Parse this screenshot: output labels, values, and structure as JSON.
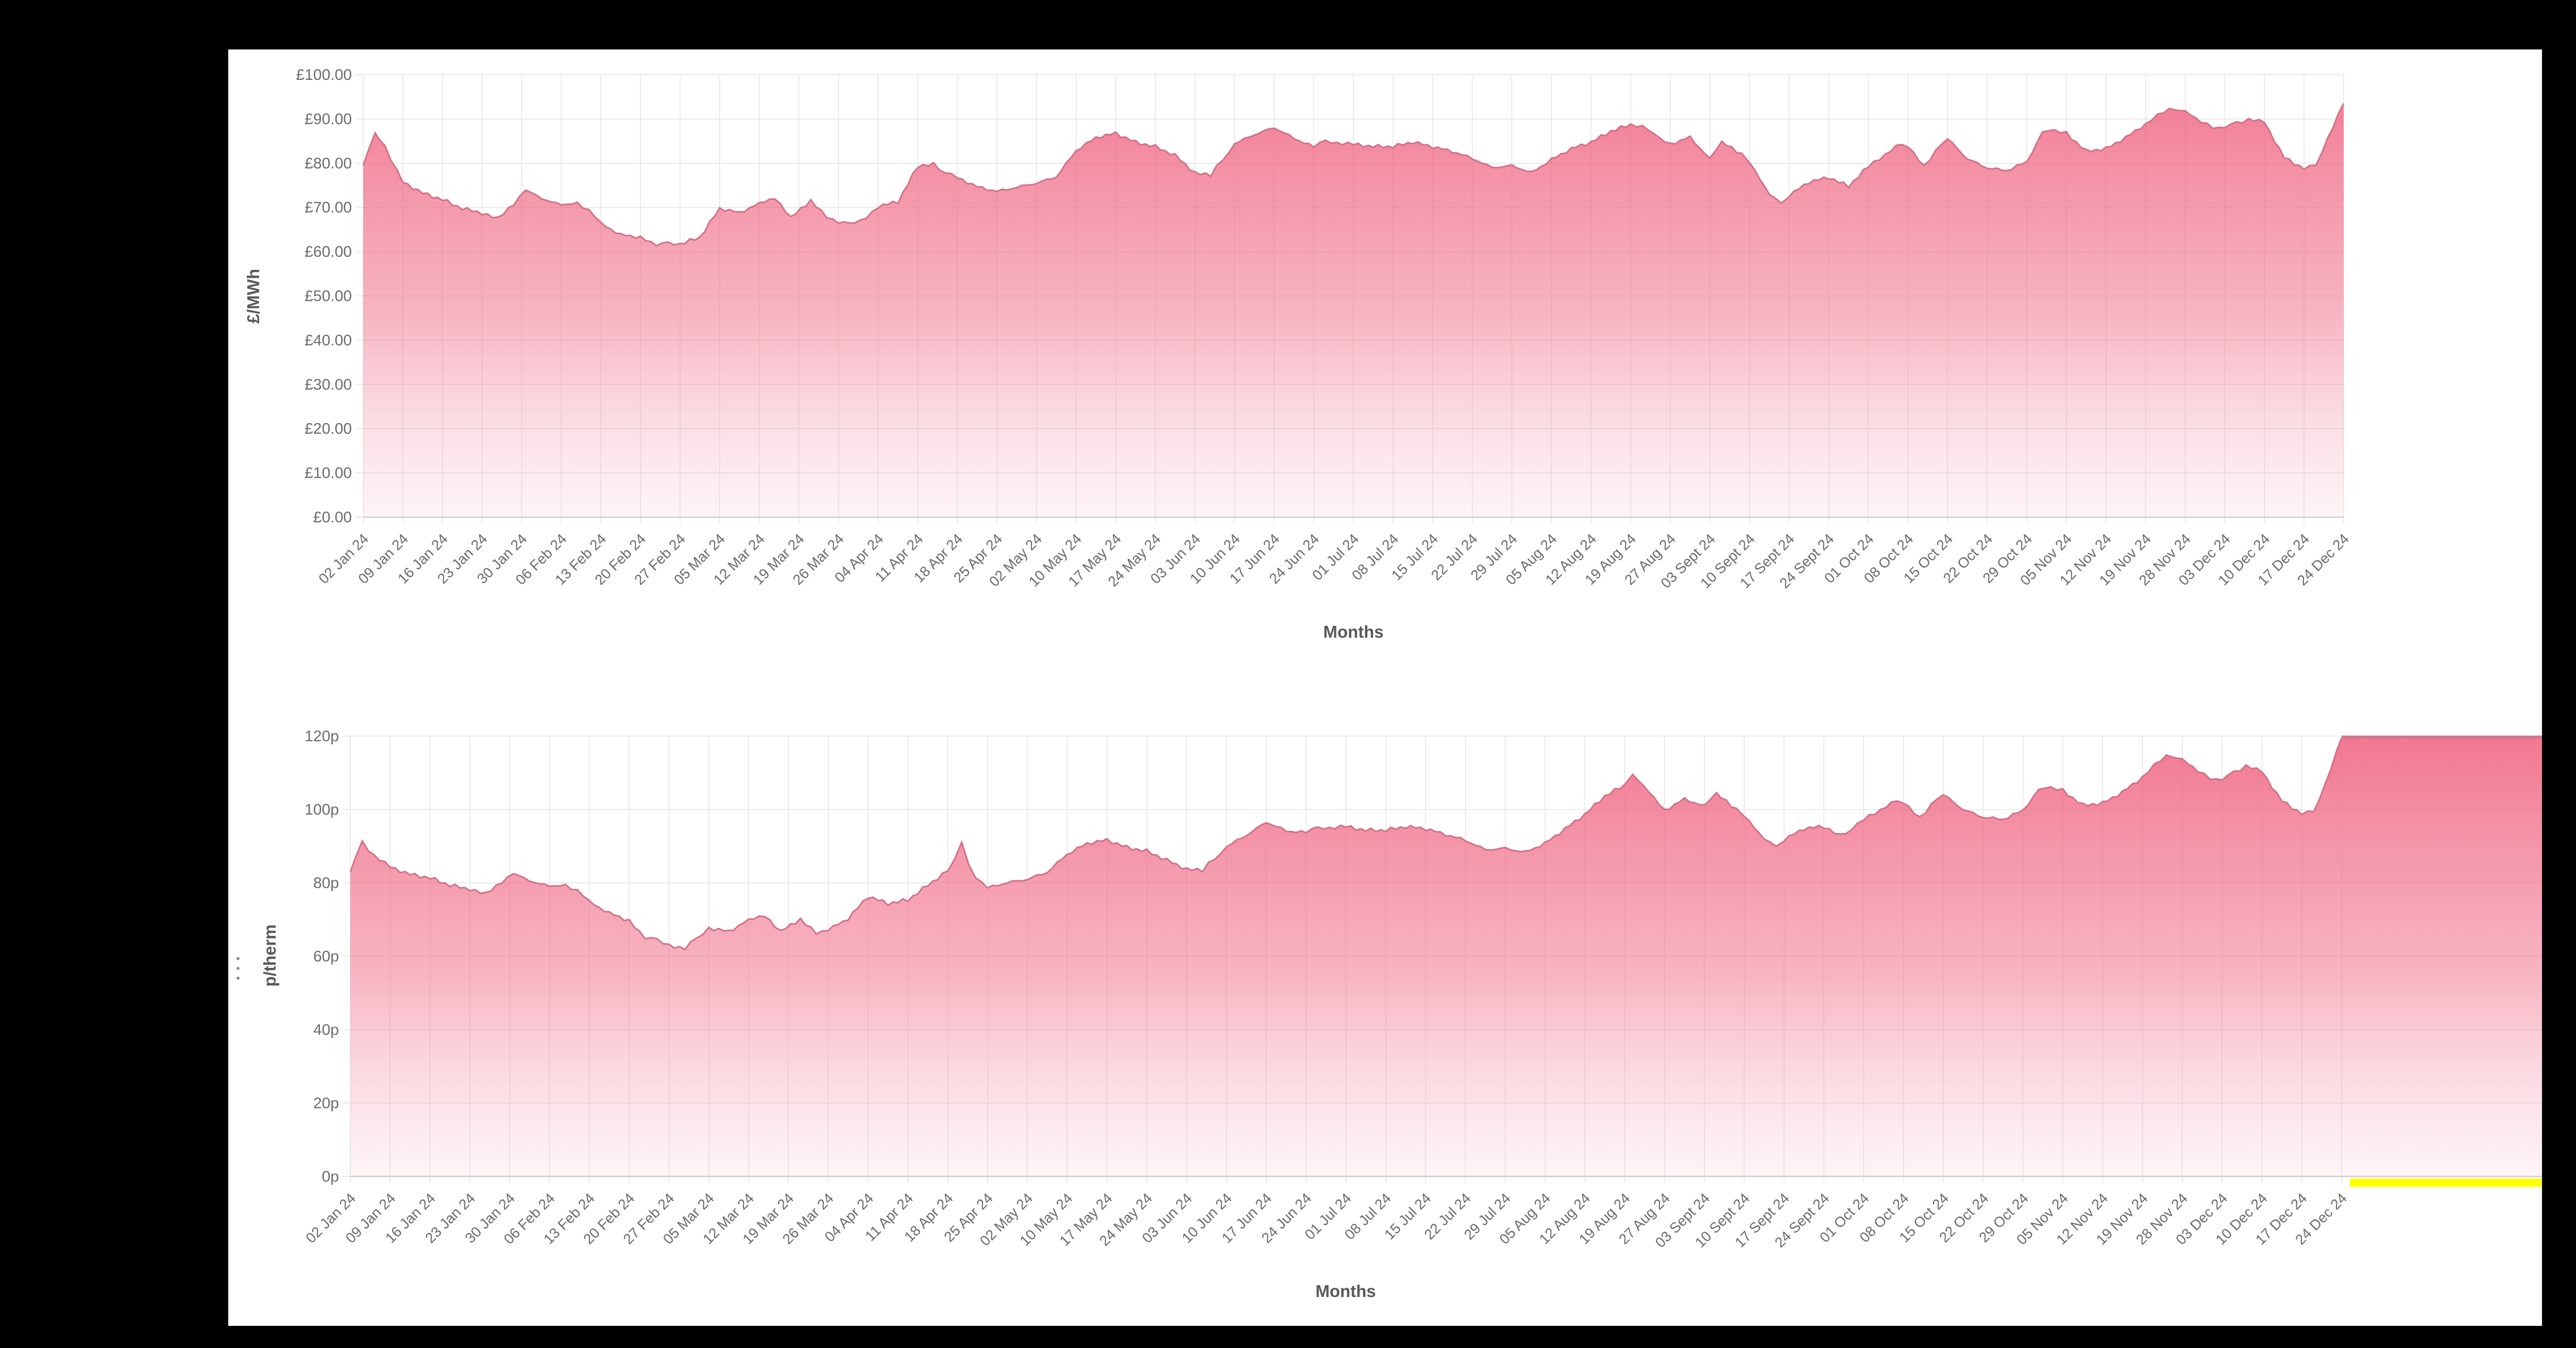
{
  "window": {
    "frame_background": "#000000",
    "surface_background": "#ffffff"
  },
  "icons": {
    "drag_handle": "vertical-dots"
  },
  "chart_data": [
    {
      "type": "area",
      "id": "power",
      "title": "",
      "xlabel": "Months",
      "ylabel": "£/MWh",
      "ylim": [
        0,
        100
      ],
      "y_ticks": [
        "£100.00",
        "£90.00",
        "£80.00",
        "£70.00",
        "£60.00",
        "£50.00",
        "£40.00",
        "£30.00",
        "£20.00",
        "£10.00",
        "£0.00"
      ],
      "x_label_rotation": -45,
      "grid": "on",
      "legend_position": "none",
      "categories": [
        "02 Jan 24",
        "09 Jan 24",
        "16 Jan 24",
        "23 Jan 24",
        "30 Jan 24",
        "06 Feb 24",
        "13 Feb 24",
        "20 Feb 24",
        "27 Feb 24",
        "05 Mar 24",
        "12 Mar 24",
        "19 Mar 24",
        "26 Mar 24",
        "04 Apr 24",
        "11 Apr 24",
        "18 Apr 24",
        "25 Apr 24",
        "02 May 24",
        "10 May 24",
        "17 May 24",
        "24 May 24",
        "03 Jun 24",
        "10 Jun 24",
        "17 Jun 24",
        "24 Jun 24",
        "01 Jul 24",
        "08 Jul 24",
        "15 Jul 24",
        "22 Jul 24",
        "29 Jul 24",
        "05 Aug 24",
        "12 Aug 24",
        "19 Aug 24",
        "27 Aug 24",
        "03 Sept 24",
        "10 Sept 24",
        "17 Sept 24",
        "24 Sept 24",
        "01 Oct 24",
        "08 Oct 24",
        "15 Oct 24",
        "22 Oct 24",
        "29 Oct 24",
        "05 Nov 24",
        "12 Nov 24",
        "19 Nov 24",
        "28 Nov 24",
        "03 Dec 24",
        "10 Dec 24",
        "17 Dec 24",
        "24 Dec 24"
      ],
      "values": [
        79.5,
        75.5,
        71.5,
        68.5,
        72.5,
        70.5,
        66.5,
        63.5,
        62,
        70,
        71,
        69,
        66.5,
        70,
        79,
        76.5,
        73.5,
        75.5,
        83,
        87,
        84,
        78,
        84.5,
        88,
        83.5,
        84,
        83.5,
        83.5,
        81,
        79.5,
        81,
        85,
        89,
        84.5,
        81,
        80,
        72.5,
        76.5,
        79,
        83.5,
        85.5,
        79,
        80.5,
        87,
        83.5,
        89,
        92,
        88,
        89,
        78.5,
        93.5
      ],
      "detail_points": [
        [
          0,
          79.5
        ],
        [
          0.3,
          86.5
        ],
        [
          0.55,
          84
        ],
        [
          1,
          75.5
        ],
        [
          1.5,
          73
        ],
        [
          2,
          71.5
        ],
        [
          2.5,
          69.5
        ],
        [
          3,
          68.5
        ],
        [
          3.4,
          67.5
        ],
        [
          3.8,
          71
        ],
        [
          4.1,
          73.5
        ],
        [
          4.5,
          72
        ],
        [
          5,
          70.5
        ],
        [
          5.4,
          71.5
        ],
        [
          6,
          66.5
        ],
        [
          6.5,
          64
        ],
        [
          7,
          63.5
        ],
        [
          7.4,
          61.5
        ],
        [
          8,
          62
        ],
        [
          8.5,
          63.5
        ],
        [
          9,
          70
        ],
        [
          9.5,
          69
        ],
        [
          10,
          71
        ],
        [
          10.4,
          72
        ],
        [
          10.8,
          67.5
        ],
        [
          11.3,
          71.5
        ],
        [
          11.7,
          68
        ],
        [
          12,
          66.5
        ],
        [
          12.4,
          66
        ],
        [
          13,
          70
        ],
        [
          13.5,
          71
        ],
        [
          14,
          79
        ],
        [
          14.4,
          80
        ],
        [
          14.7,
          78
        ],
        [
          15,
          76.5
        ],
        [
          15.5,
          74.5
        ],
        [
          16,
          73.5
        ],
        [
          16.5,
          74.5
        ],
        [
          17,
          75.5
        ],
        [
          17.5,
          77
        ],
        [
          18,
          83
        ],
        [
          18.5,
          86
        ],
        [
          19,
          87
        ],
        [
          19.5,
          85
        ],
        [
          20,
          84
        ],
        [
          20.5,
          82
        ],
        [
          21,
          78
        ],
        [
          21.4,
          77
        ],
        [
          22,
          84.5
        ],
        [
          22.5,
          86.5
        ],
        [
          23,
          88
        ],
        [
          23.5,
          85.5
        ],
        [
          24,
          83.5
        ],
        [
          24.3,
          85
        ],
        [
          25,
          84
        ],
        [
          25.5,
          83.5
        ],
        [
          26,
          83.5
        ],
        [
          26.5,
          84.5
        ],
        [
          27,
          83.5
        ],
        [
          27.5,
          82.5
        ],
        [
          28,
          81
        ],
        [
          28.5,
          79
        ],
        [
          29,
          79.5
        ],
        [
          29.5,
          78
        ],
        [
          30,
          81
        ],
        [
          30.5,
          83.5
        ],
        [
          31,
          85
        ],
        [
          31.5,
          87.5
        ],
        [
          32,
          89
        ],
        [
          32.3,
          88
        ],
        [
          33,
          84.5
        ],
        [
          33.5,
          86
        ],
        [
          34,
          81
        ],
        [
          34.3,
          84.5
        ],
        [
          34.8,
          82
        ],
        [
          35,
          80
        ],
        [
          35.5,
          73
        ],
        [
          35.8,
          71
        ],
        [
          36,
          72.5
        ],
        [
          36.5,
          75.5
        ],
        [
          37,
          76.5
        ],
        [
          37.5,
          74.5
        ],
        [
          38,
          79
        ],
        [
          38.7,
          84
        ],
        [
          39,
          83.5
        ],
        [
          39.4,
          79.5
        ],
        [
          40,
          85.5
        ],
        [
          40.5,
          81
        ],
        [
          41,
          79
        ],
        [
          41.5,
          78.5
        ],
        [
          42,
          80.5
        ],
        [
          42.4,
          87.5
        ],
        [
          43,
          87
        ],
        [
          43.5,
          83
        ],
        [
          44,
          83.5
        ],
        [
          44.5,
          86
        ],
        [
          45,
          89
        ],
        [
          45.6,
          92.5
        ],
        [
          46,
          92
        ],
        [
          46.4,
          89
        ],
        [
          47,
          88
        ],
        [
          47.6,
          90
        ],
        [
          48,
          89
        ],
        [
          48.5,
          81
        ],
        [
          49,
          78.5
        ],
        [
          49.3,
          80
        ],
        [
          49.6,
          85.5
        ],
        [
          50,
          93.5
        ]
      ],
      "colors": {
        "line": "#d4behind",
        "line_color": "#d46f86",
        "grid": "#e4e4e4",
        "axis_line": "#cccccc",
        "tick_label": "#6b6b6b",
        "axis_title": "#595959",
        "fill_stops": [
          {
            "at": 0,
            "color": "#ee5a78",
            "opacity": 0.82
          },
          {
            "at": 0.55,
            "color": "#f0718c",
            "opacity": 0.52
          },
          {
            "at": 1,
            "color": "#f7b9c6",
            "opacity": 0.16
          }
        ]
      }
    },
    {
      "type": "area",
      "id": "gas",
      "title": "",
      "xlabel": "Months",
      "ylabel": "p/therm",
      "ylim": [
        0,
        120
      ],
      "y_ticks": [
        "120p",
        "100p",
        "80p",
        "60p",
        "40p",
        "20p",
        "0p"
      ],
      "x_label_rotation": -45,
      "grid": "on",
      "legend_position": "none",
      "categories": [
        "02 Jan 24",
        "09 Jan 24",
        "16 Jan 24",
        "23 Jan 24",
        "30 Jan 24",
        "06 Feb 24",
        "13 Feb 24",
        "20 Feb 24",
        "27 Feb 24",
        "05 Mar 24",
        "12 Mar 24",
        "19 Mar 24",
        "26 Mar 24",
        "04 Apr 24",
        "11 Apr 24",
        "18 Apr 24",
        "25 Apr 24",
        "02 May 24",
        "10 May 24",
        "17 May 24",
        "24 May 24",
        "03 Jun 24",
        "10 Jun 24",
        "17 Jun 24",
        "24 Jun 24",
        "01 Jul 24",
        "08 Jul 24",
        "15 Jul 24",
        "22 Jul 24",
        "29 Jul 24",
        "05 Aug 24",
        "12 Aug 24",
        "19 Aug 24",
        "27 Aug 24",
        "03 Sept 24",
        "10 Sept 24",
        "17 Sept 24",
        "24 Sept 24",
        "01 Oct 24",
        "08 Oct 24",
        "15 Oct 24",
        "22 Oct 24",
        "29 Oct 24",
        "05 Nov 24",
        "12 Nov 24",
        "19 Nov 24",
        "28 Nov 24",
        "03 Dec 24",
        "10 Dec 24",
        "17 Dec 24",
        "24 Dec 24"
      ],
      "values": [
        83,
        84,
        81,
        78,
        81.5,
        79,
        75,
        70,
        63.5,
        68,
        70,
        68.5,
        67,
        76,
        75,
        83,
        78.5,
        81,
        88,
        92,
        89,
        84,
        90,
        96.5,
        93.5,
        95,
        94,
        94.5,
        91.5,
        89.5,
        91,
        99,
        107,
        100,
        101,
        98,
        91.5,
        95,
        97,
        101.5,
        104,
        98,
        100,
        105.5,
        102,
        109,
        114,
        108,
        110,
        98.5,
        119.5
      ],
      "detail_points": [
        [
          0,
          83
        ],
        [
          0.3,
          91
        ],
        [
          0.6,
          87.5
        ],
        [
          1,
          84
        ],
        [
          1.5,
          82
        ],
        [
          2,
          81
        ],
        [
          2.5,
          79
        ],
        [
          3,
          78
        ],
        [
          3.4,
          77
        ],
        [
          3.8,
          80.5
        ],
        [
          4.1,
          82
        ],
        [
          4.5,
          80.5
        ],
        [
          5,
          79
        ],
        [
          5.4,
          80
        ],
        [
          6,
          75
        ],
        [
          6.5,
          72
        ],
        [
          7,
          70
        ],
        [
          7.4,
          65
        ],
        [
          8,
          63.5
        ],
        [
          8.4,
          62
        ],
        [
          9,
          68
        ],
        [
          9.5,
          67
        ],
        [
          10,
          70
        ],
        [
          10.4,
          71
        ],
        [
          10.8,
          66.5
        ],
        [
          11.3,
          70
        ],
        [
          11.7,
          66.5
        ],
        [
          12,
          67
        ],
        [
          12.5,
          70
        ],
        [
          13,
          76
        ],
        [
          13.5,
          74
        ],
        [
          14,
          75
        ],
        [
          14.5,
          79
        ],
        [
          15,
          83
        ],
        [
          15.35,
          90.5
        ],
        [
          15.7,
          81
        ],
        [
          16,
          78.5
        ],
        [
          16.5,
          80
        ],
        [
          17,
          81
        ],
        [
          17.5,
          83
        ],
        [
          18,
          88
        ],
        [
          18.5,
          91
        ],
        [
          19,
          92
        ],
        [
          19.5,
          90
        ],
        [
          20,
          89
        ],
        [
          20.5,
          86.5
        ],
        [
          21,
          84
        ],
        [
          21.4,
          83
        ],
        [
          22,
          90
        ],
        [
          22.5,
          93
        ],
        [
          23,
          96.5
        ],
        [
          23.5,
          94
        ],
        [
          24,
          93.5
        ],
        [
          24.3,
          95
        ],
        [
          25,
          95
        ],
        [
          25.5,
          94
        ],
        [
          26,
          94
        ],
        [
          26.5,
          95
        ],
        [
          27,
          94.5
        ],
        [
          27.5,
          93
        ],
        [
          28,
          91.5
        ],
        [
          28.5,
          89
        ],
        [
          29,
          89.5
        ],
        [
          29.5,
          88.5
        ],
        [
          30,
          91
        ],
        [
          30.5,
          95
        ],
        [
          31,
          99
        ],
        [
          31.5,
          104
        ],
        [
          32,
          107
        ],
        [
          32.2,
          109.5
        ],
        [
          32.6,
          105
        ],
        [
          33,
          100
        ],
        [
          33.5,
          103
        ],
        [
          34,
          101
        ],
        [
          34.3,
          104
        ],
        [
          34.8,
          100
        ],
        [
          35,
          98
        ],
        [
          35.5,
          92
        ],
        [
          35.8,
          90
        ],
        [
          36,
          91.5
        ],
        [
          36.5,
          94.5
        ],
        [
          37,
          95
        ],
        [
          37.4,
          93
        ],
        [
          38,
          97
        ],
        [
          38.7,
          102
        ],
        [
          39,
          101.5
        ],
        [
          39.4,
          98
        ],
        [
          40,
          104
        ],
        [
          40.5,
          100
        ],
        [
          41,
          98
        ],
        [
          41.5,
          97.5
        ],
        [
          42,
          100
        ],
        [
          42.4,
          106
        ],
        [
          43,
          105.5
        ],
        [
          43.5,
          101.5
        ],
        [
          44,
          102
        ],
        [
          44.5,
          105
        ],
        [
          45,
          109
        ],
        [
          45.6,
          115
        ],
        [
          46,
          114
        ],
        [
          46.4,
          110
        ],
        [
          47,
          108
        ],
        [
          47.6,
          112
        ],
        [
          48,
          110
        ],
        [
          48.5,
          102
        ],
        [
          49,
          98.5
        ],
        [
          49.3,
          100
        ],
        [
          49.6,
          107
        ],
        [
          50,
          119.5
        ]
      ],
      "colors": {
        "line_color": "#d46f86",
        "grid": "#e4e4e4",
        "axis_line": "#cccccc",
        "tick_label": "#6b6b6b",
        "axis_title": "#595959",
        "fill_stops": [
          {
            "at": 0,
            "color": "#ee5a78",
            "opacity": 0.82
          },
          {
            "at": 0.55,
            "color": "#f0718c",
            "opacity": 0.52
          },
          {
            "at": 1,
            "color": "#f7b9c6",
            "opacity": 0.16
          }
        ]
      },
      "right_panel": {
        "top_line_color": "#d4758d",
        "underline_color": "#ffff00"
      }
    }
  ]
}
